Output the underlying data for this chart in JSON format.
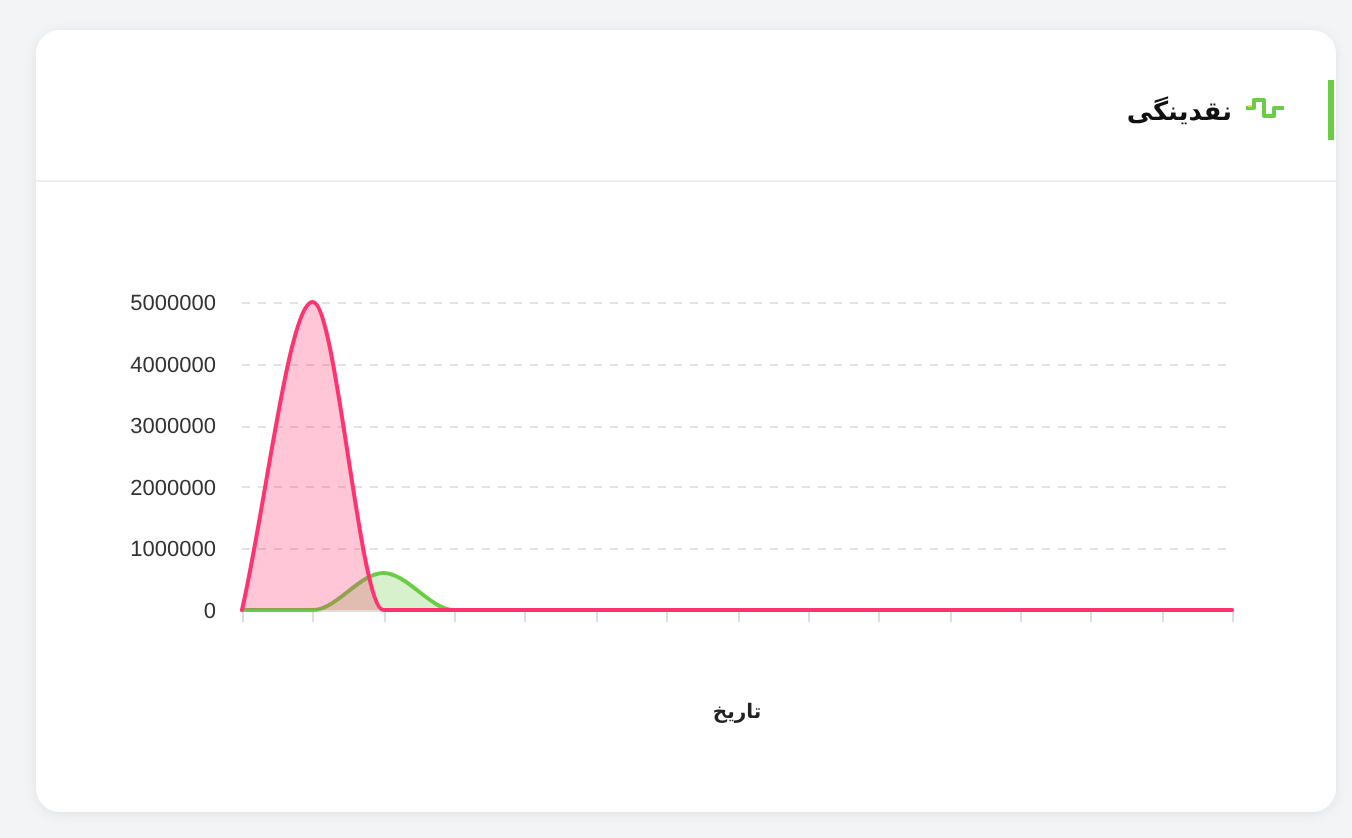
{
  "chart_data": {
    "type": "area",
    "title": "نقدینگی",
    "xlabel": "تاریخ",
    "categories": [
      null,
      null,
      null,
      null,
      null,
      null,
      null,
      null,
      null,
      null,
      null,
      null,
      null,
      null,
      null
    ],
    "series": [
      {
        "color": "#6acd45",
        "values": [
          0,
          0,
          600000,
          0,
          0,
          0,
          0,
          0,
          0,
          0,
          0,
          0,
          0,
          0,
          0
        ]
      },
      {
        "color": "#ff3370",
        "values": [
          0,
          5000000,
          0,
          0,
          0,
          0,
          0,
          0,
          0,
          0,
          0,
          0,
          0,
          0,
          0
        ]
      }
    ],
    "ylim": [
      0,
      5000000
    ],
    "yticks": [
      0,
      1000000,
      2000000,
      3000000,
      4000000,
      5000000
    ],
    "grid": "y"
  }
}
